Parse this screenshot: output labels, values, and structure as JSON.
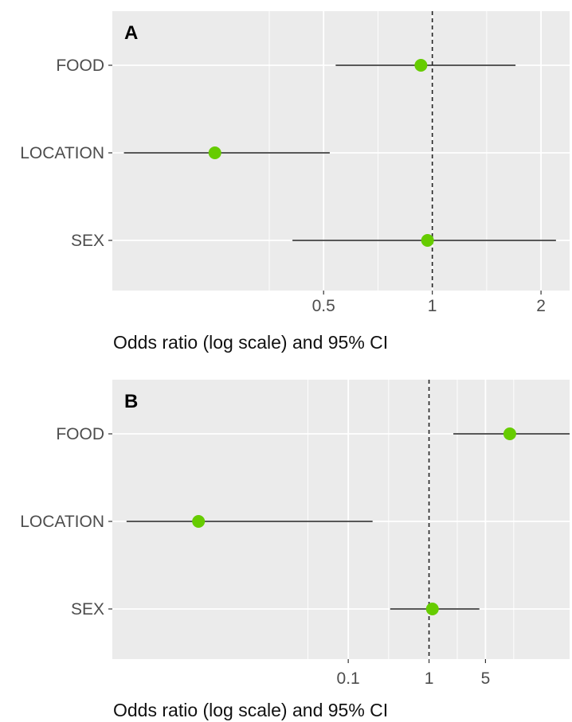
{
  "chart_data": [
    {
      "type": "scatter",
      "variant": "forest-plot",
      "panel_label": "A",
      "categories": [
        "FOOD",
        "LOCATION",
        "SEX"
      ],
      "estimates": [
        0.93,
        0.25,
        0.97
      ],
      "ci_lower": [
        0.54,
        0.14,
        0.41
      ],
      "ci_upper": [
        1.7,
        0.52,
        2.2
      ],
      "reference_line": 1,
      "x_scale": "log",
      "xlim": [
        0.13,
        2.4
      ],
      "x_ticks": [
        0.5,
        1,
        2
      ],
      "x_tick_labels": [
        "0.5",
        "1",
        "2"
      ],
      "xlabel": "Odds ratio (log scale) and 95% CI",
      "ylabel": "",
      "grid": true,
      "legend": "none"
    },
    {
      "type": "scatter",
      "variant": "forest-plot",
      "panel_label": "B",
      "categories": [
        "FOOD",
        "LOCATION",
        "SEX"
      ],
      "estimates": [
        10,
        0.0014,
        1.1
      ],
      "ci_lower": [
        2.0,
        0.00018,
        0.33
      ],
      "ci_upper": [
        55,
        0.2,
        4.2
      ],
      "reference_line": 1,
      "x_scale": "log",
      "xlim": [
        0.00012,
        55
      ],
      "x_ticks": [
        0.1,
        1,
        5
      ],
      "x_tick_labels": [
        "0.1",
        "1",
        "5"
      ],
      "xlabel": "Odds ratio (log scale) and 95% CI",
      "ylabel": "",
      "grid": true,
      "legend": "none"
    }
  ],
  "colors": {
    "panel_background": "#ebebeb",
    "grid": "#ffffff",
    "point": "#66cc00",
    "ci_line": "#222222",
    "reference_line": "#222222",
    "tick_label": "#4d4d4d",
    "axis_title": "#111111"
  }
}
